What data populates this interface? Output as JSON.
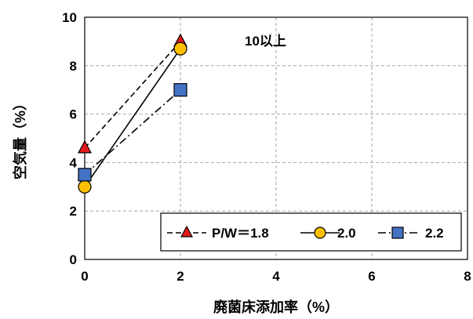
{
  "chart_data": {
    "type": "line",
    "xlabel": "廃菌床添加率（%）",
    "ylabel": "空気量（%）",
    "annotation": "10以上",
    "xlim": [
      0,
      8
    ],
    "ylim": [
      0,
      10
    ],
    "x_ticks": [
      "0",
      "2",
      "4",
      "6",
      "8"
    ],
    "y_ticks": [
      "0",
      "2",
      "4",
      "6",
      "8",
      "10"
    ],
    "grid": true,
    "legend_position": "bottom-right",
    "series": [
      {
        "name": "P/W＝1.8",
        "x": [
          0,
          2
        ],
        "y": [
          4.6,
          9.0
        ],
        "marker": "triangle",
        "color": "#e31a1c",
        "line": "dashed"
      },
      {
        "name": "2.0",
        "x": [
          0,
          2
        ],
        "y": [
          3.0,
          8.7
        ],
        "marker": "circle",
        "color": "#ffc000",
        "line": "solid"
      },
      {
        "name": "2.2",
        "x": [
          0,
          2
        ],
        "y": [
          3.5,
          7.0
        ],
        "marker": "square",
        "color": "#4472c4",
        "line": "dashdot"
      }
    ]
  }
}
